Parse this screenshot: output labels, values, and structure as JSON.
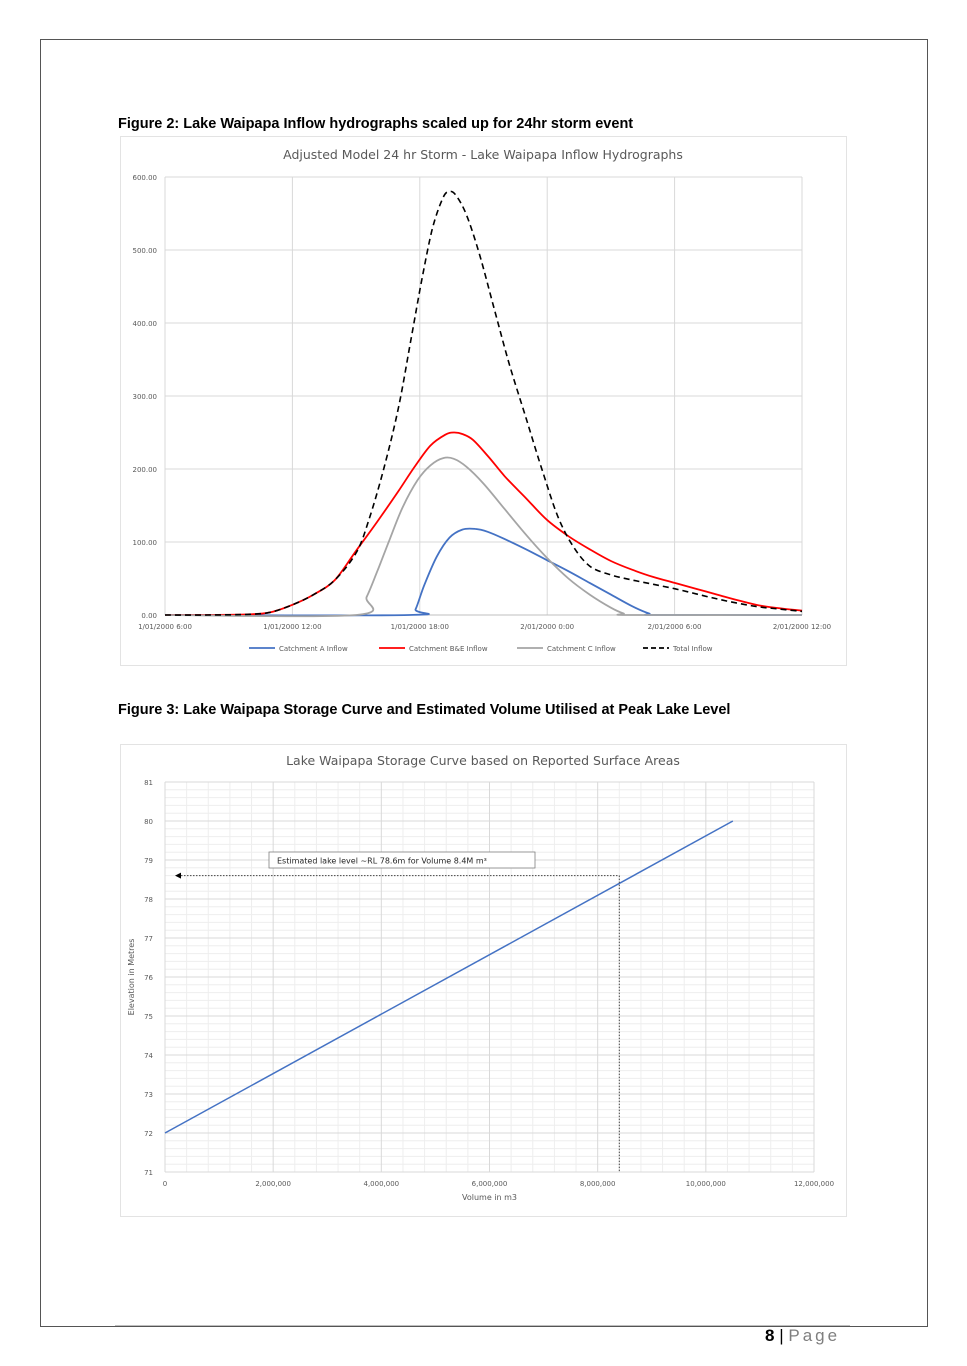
{
  "document": {
    "figure2_caption": "Figure 2: Lake Waipapa Inflow hydrographs scaled up for 24hr storm event",
    "figure3_caption": "Figure 3: Lake Waipapa Storage Curve and Estimated Volume Utilised at Peak Lake Level",
    "footer": {
      "page_number": "8",
      "separator": "|",
      "page_label": "Page"
    }
  },
  "chart_data": [
    {
      "type": "line",
      "title": "Adjusted Model 24 hr Storm - Lake Waipapa Inflow Hydrographs",
      "xlabel": "",
      "ylabel": "",
      "x_ticks": [
        "1/01/2000 6:00",
        "1/01/2000 12:00",
        "1/01/2000 18:00",
        "2/01/2000 0:00",
        "2/01/2000 6:00",
        "2/01/2000 12:00"
      ],
      "x_hours_range": [
        0,
        30
      ],
      "y_ticks": [
        "0.00",
        "100.00",
        "200.00",
        "300.00",
        "400.00",
        "500.00",
        "600.00"
      ],
      "ylim": [
        0,
        600
      ],
      "grid": true,
      "legend_position": "bottom",
      "series": [
        {
          "name": "Catchment A Inflow",
          "color": "#4472c4",
          "dash": "",
          "points": [
            [
              0,
              0
            ],
            [
              11.5,
              0
            ],
            [
              11.8,
              8
            ],
            [
              12.2,
              40
            ],
            [
              12.8,
              80
            ],
            [
              13.4,
              106
            ],
            [
              14.0,
              117
            ],
            [
              14.6,
              118
            ],
            [
              15.2,
              114
            ],
            [
              16.0,
              104
            ],
            [
              17.0,
              90
            ],
            [
              18.0,
              75
            ],
            [
              19.0,
              60
            ],
            [
              20.0,
              44
            ],
            [
              21.0,
              28
            ],
            [
              22.0,
              12
            ],
            [
              22.8,
              2
            ],
            [
              23.2,
              0
            ],
            [
              30,
              0
            ]
          ]
        },
        {
          "name": "Catchment B&E Inflow",
          "color": "#ff0000",
          "dash": "",
          "points": [
            [
              0,
              0
            ],
            [
              2,
              0
            ],
            [
              4,
              1
            ],
            [
              5,
              4
            ],
            [
              6,
              14
            ],
            [
              7,
              28
            ],
            [
              8,
              48
            ],
            [
              9,
              88
            ],
            [
              10,
              128
            ],
            [
              11,
              170
            ],
            [
              11.8,
              205
            ],
            [
              12.5,
              232
            ],
            [
              13.2,
              247
            ],
            [
              13.6,
              250
            ],
            [
              14.0,
              248
            ],
            [
              14.5,
              240
            ],
            [
              15.2,
              218
            ],
            [
              16.0,
              190
            ],
            [
              17.0,
              160
            ],
            [
              18.0,
              130
            ],
            [
              19.0,
              108
            ],
            [
              20.0,
              90
            ],
            [
              21.0,
              74
            ],
            [
              22.0,
              62
            ],
            [
              23.0,
              52
            ],
            [
              24.0,
              44
            ],
            [
              25.0,
              36
            ],
            [
              26.0,
              28
            ],
            [
              27.0,
              20
            ],
            [
              28.0,
              13
            ],
            [
              29.0,
              9
            ],
            [
              30,
              6
            ]
          ]
        },
        {
          "name": "Catchment C Inflow",
          "color": "#a5a5a5",
          "dash": "",
          "points": [
            [
              0,
              0
            ],
            [
              9.0,
              0
            ],
            [
              9.5,
              25
            ],
            [
              10.0,
              60
            ],
            [
              10.6,
              105
            ],
            [
              11.2,
              148
            ],
            [
              11.9,
              185
            ],
            [
              12.5,
              205
            ],
            [
              13.1,
              215
            ],
            [
              13.6,
              214
            ],
            [
              14.2,
              203
            ],
            [
              15.0,
              180
            ],
            [
              16.0,
              145
            ],
            [
              17.0,
              110
            ],
            [
              18.0,
              78
            ],
            [
              19.0,
              50
            ],
            [
              20.0,
              28
            ],
            [
              21.0,
              10
            ],
            [
              21.6,
              2
            ],
            [
              22.0,
              0
            ],
            [
              30,
              0
            ]
          ]
        },
        {
          "name": "Total Inflow",
          "color": "#000000",
          "dash": "6,4",
          "points": [
            [
              0,
              0
            ],
            [
              2,
              0
            ],
            [
              4,
              1
            ],
            [
              5,
              4
            ],
            [
              6,
              14
            ],
            [
              7,
              28
            ],
            [
              8,
              48
            ],
            [
              9,
              85
            ],
            [
              9.6,
              130
            ],
            [
              10.3,
              200
            ],
            [
              11.0,
              285
            ],
            [
              11.6,
              380
            ],
            [
              12.1,
              460
            ],
            [
              12.6,
              530
            ],
            [
              13.1,
              572
            ],
            [
              13.4,
              580
            ],
            [
              13.7,
              575
            ],
            [
              14.2,
              548
            ],
            [
              14.8,
              495
            ],
            [
              15.5,
              420
            ],
            [
              16.2,
              345
            ],
            [
              17.0,
              270
            ],
            [
              17.8,
              195
            ],
            [
              18.5,
              135
            ],
            [
              19.2,
              95
            ],
            [
              20.0,
              67
            ],
            [
              21.0,
              55
            ],
            [
              22.0,
              48
            ],
            [
              23.0,
              42
            ],
            [
              24.0,
              36
            ],
            [
              25.0,
              29
            ],
            [
              26.0,
              22
            ],
            [
              27.0,
              16
            ],
            [
              28.0,
              11
            ],
            [
              29.0,
              8
            ],
            [
              30,
              5
            ]
          ]
        }
      ]
    },
    {
      "type": "line",
      "title": "Lake Waipapa Storage Curve based on Reported Surface Areas",
      "xlabel": "Volume in m3",
      "ylabel": "Elevation in Metres",
      "x_ticks": [
        "0",
        "2,000,000",
        "4,000,000",
        "6,000,000",
        "8,000,000",
        "10,000,000",
        "12,000,000"
      ],
      "xlim": [
        0,
        12000000
      ],
      "y_ticks": [
        "71",
        "72",
        "73",
        "74",
        "75",
        "76",
        "77",
        "78",
        "79",
        "80",
        "81"
      ],
      "ylim": [
        71,
        81
      ],
      "grid": true,
      "series": [
        {
          "name": "",
          "color": "#4472c4",
          "x": [
            0,
            10500000
          ],
          "y": [
            72,
            80
          ]
        }
      ],
      "annotation": {
        "text": "Estimated lake level ~RL 78.6m for Volume 8.4M m³",
        "x": 8400000,
        "y": 78.6
      }
    }
  ]
}
